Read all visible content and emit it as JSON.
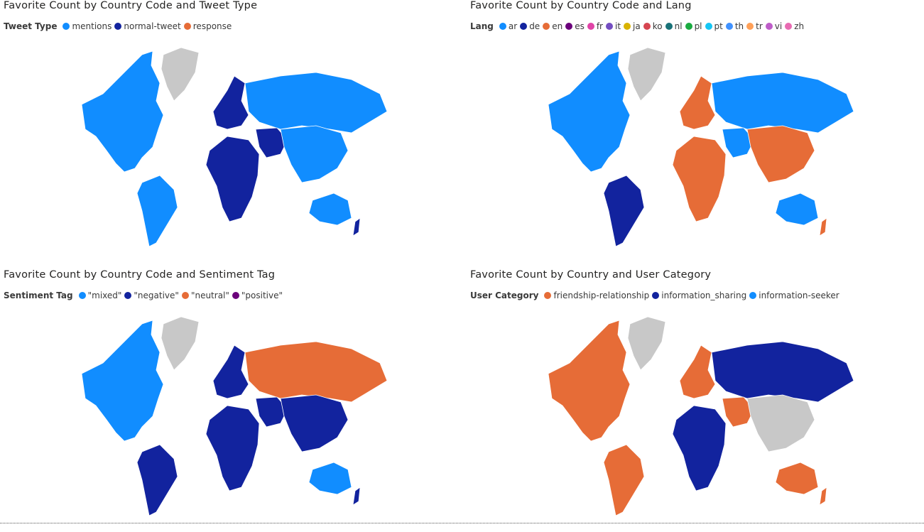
{
  "panels": [
    {
      "title": "Favorite Count by Country Code and Tweet Type",
      "legend_title": "Tweet Type",
      "legend": [
        {
          "label": "mentions",
          "color": "#118DFF"
        },
        {
          "label": "normal-tweet",
          "color": "#12239E"
        },
        {
          "label": "response",
          "color": "#E66C37"
        }
      ]
    },
    {
      "title": "Favorite Count by Country Code and Lang",
      "legend_title": "Lang",
      "legend": [
        {
          "label": "ar",
          "color": "#118DFF"
        },
        {
          "label": "de",
          "color": "#12239E"
        },
        {
          "label": "en",
          "color": "#E66C37"
        },
        {
          "label": "es",
          "color": "#6B007B"
        },
        {
          "label": "fr",
          "color": "#E044A7"
        },
        {
          "label": "it",
          "color": "#744EC2"
        },
        {
          "label": "ja",
          "color": "#D9B300"
        },
        {
          "label": "ko",
          "color": "#D64550"
        },
        {
          "label": "nl",
          "color": "#197278"
        },
        {
          "label": "pl",
          "color": "#1AAB40"
        },
        {
          "label": "pt",
          "color": "#15C6F4"
        },
        {
          "label": "th",
          "color": "#4092FF"
        },
        {
          "label": "tr",
          "color": "#FFA058"
        },
        {
          "label": "vi",
          "color": "#BE5DC9"
        },
        {
          "label": "zh",
          "color": "#E86BB2"
        }
      ]
    },
    {
      "title": "Favorite Count by Country Code and Sentiment Tag",
      "legend_title": "Sentiment Tag",
      "legend": [
        {
          "label": "\"mixed\"",
          "color": "#118DFF"
        },
        {
          "label": "\"negative\"",
          "color": "#12239E"
        },
        {
          "label": "\"neutral\"",
          "color": "#E66C37"
        },
        {
          "label": "\"positive\"",
          "color": "#6B007B"
        }
      ]
    },
    {
      "title": "Favorite Count by Country and User Category",
      "legend_title": "User Category",
      "legend": [
        {
          "label": "friendship-relationship",
          "color": "#E66C37"
        },
        {
          "label": "information_sharing",
          "color": "#12239E"
        },
        {
          "label": "information-seeker",
          "color": "#118DFF"
        }
      ]
    }
  ],
  "maps": [
    {
      "na": "#118DFF",
      "gl": "#C8C8C8",
      "sa": "#118DFF",
      "eu": "#12239E",
      "ru": "#118DFF",
      "af": "#12239E",
      "me": "#12239E",
      "as": "#118DFF",
      "au": "#118DFF",
      "nz": "#12239E"
    },
    {
      "na": "#118DFF",
      "gl": "#C8C8C8",
      "sa": "#12239E",
      "eu": "#E66C37",
      "ru": "#118DFF",
      "af": "#E66C37",
      "me": "#118DFF",
      "as": "#E66C37",
      "au": "#118DFF",
      "nz": "#E66C37"
    },
    {
      "na": "#118DFF",
      "gl": "#C8C8C8",
      "sa": "#12239E",
      "eu": "#12239E",
      "ru": "#E66C37",
      "af": "#12239E",
      "me": "#12239E",
      "as": "#12239E",
      "au": "#118DFF",
      "nz": "#12239E"
    },
    {
      "na": "#E66C37",
      "gl": "#C8C8C8",
      "sa": "#E66C37",
      "eu": "#E66C37",
      "ru": "#12239E",
      "af": "#12239E",
      "me": "#E66C37",
      "as": "#C8C8C8",
      "au": "#E66C37",
      "nz": "#E66C37"
    }
  ]
}
